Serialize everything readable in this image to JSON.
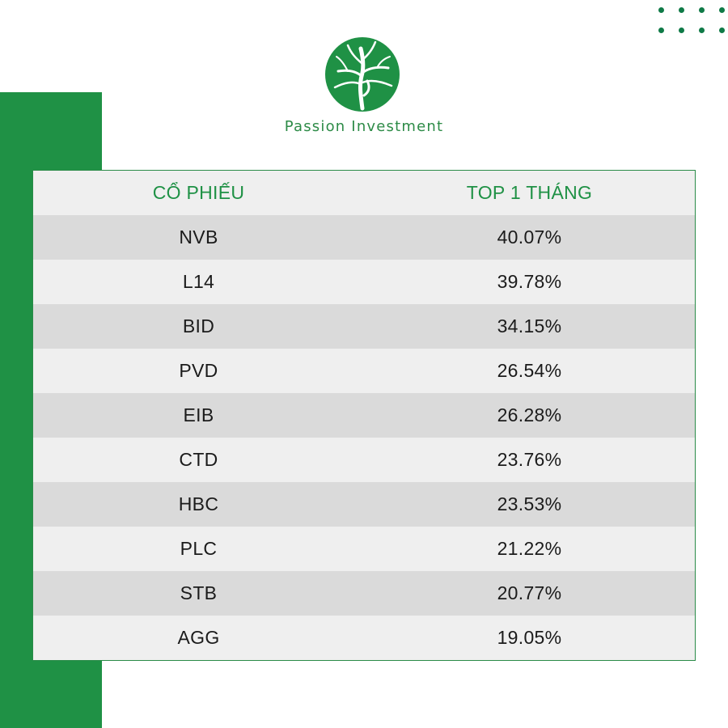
{
  "brand": {
    "name": "Passion Investment",
    "logo_icon": "tree-logo-icon",
    "accent_color": "#1f9145"
  },
  "decor": {
    "dots_icon": "dot-grid-icon"
  },
  "table": {
    "headers": [
      "CỔ PHIẾU",
      "TOP 1 THÁNG"
    ],
    "rows": [
      {
        "ticker": "NVB",
        "change": "40.07%"
      },
      {
        "ticker": "L14",
        "change": "39.78%"
      },
      {
        "ticker": "BID",
        "change": "34.15%"
      },
      {
        "ticker": "PVD",
        "change": "26.54%"
      },
      {
        "ticker": "EIB",
        "change": "26.28%"
      },
      {
        "ticker": "CTD",
        "change": "23.76%"
      },
      {
        "ticker": "HBC",
        "change": "23.53%"
      },
      {
        "ticker": "PLC",
        "change": "21.22%"
      },
      {
        "ticker": "STB",
        "change": "20.77%"
      },
      {
        "ticker": "AGG",
        "change": "19.05%"
      }
    ]
  }
}
